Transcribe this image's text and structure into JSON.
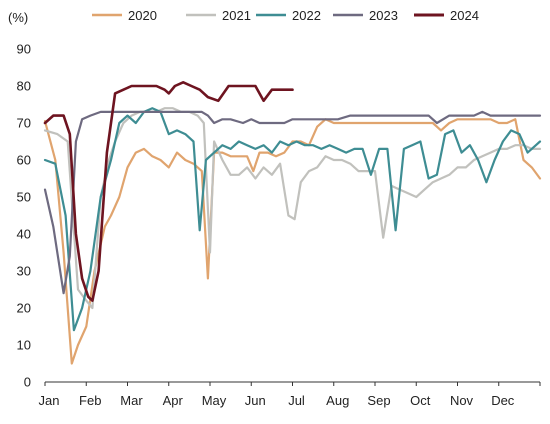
{
  "chart_data": {
    "type": "line",
    "title": "",
    "ylabel": "(%)",
    "xlabel": "",
    "ylim": [
      0,
      90
    ],
    "yticks": [
      0,
      10,
      20,
      30,
      40,
      50,
      60,
      70,
      80,
      90
    ],
    "xlim": [
      0,
      12
    ],
    "month_labels": [
      "Jan",
      "Feb",
      "Mar",
      "Apr",
      "May",
      "Jun",
      "Jul",
      "Aug",
      "Sep",
      "Oct",
      "Nov",
      "Dec"
    ],
    "grid": false,
    "legend_position": "top",
    "series": [
      {
        "name": "2020",
        "color": "#e0a46e",
        "x": [
          0.0,
          0.25,
          0.45,
          0.65,
          0.8,
          1.0,
          1.2,
          1.45,
          1.6,
          1.8,
          2.0,
          2.2,
          2.4,
          2.6,
          2.8,
          3.0,
          3.2,
          3.4,
          3.6,
          3.8,
          3.95,
          4.1,
          4.3,
          4.5,
          4.7,
          4.9,
          5.05,
          5.2,
          5.4,
          5.6,
          5.8,
          6.0,
          6.2,
          6.4,
          6.6,
          6.8,
          7.0,
          7.2,
          7.4,
          7.6,
          7.8,
          8.0,
          8.2,
          8.4,
          8.6,
          8.8,
          9.0,
          9.2,
          9.4,
          9.6,
          9.8,
          10.0,
          10.2,
          10.4,
          10.6,
          10.8,
          11.0,
          11.2,
          11.4,
          11.6,
          11.8,
          12.0
        ],
        "values": [
          70.5,
          60,
          35,
          5,
          10,
          15,
          30,
          42,
          45,
          50,
          58,
          62,
          63,
          61,
          60,
          58,
          62,
          60,
          59,
          57,
          28,
          62,
          62,
          61,
          61,
          61,
          57,
          62,
          62,
          61,
          62,
          65,
          65,
          64,
          69,
          71,
          70,
          70,
          70,
          70,
          70,
          70,
          70,
          70,
          70,
          70,
          70,
          70,
          70,
          68,
          70,
          71,
          71,
          71,
          71,
          71,
          70,
          70,
          71,
          60,
          58,
          55
        ]
      },
      {
        "name": "2021",
        "color": "#c1c1bd",
        "x": [
          0.0,
          0.3,
          0.55,
          0.8,
          1.0,
          1.15,
          1.35,
          1.55,
          1.7,
          1.9,
          2.1,
          2.3,
          2.5,
          2.7,
          2.9,
          3.1,
          3.3,
          3.5,
          3.7,
          3.85,
          4.0,
          4.1,
          4.3,
          4.5,
          4.7,
          4.9,
          5.1,
          5.3,
          5.5,
          5.7,
          5.9,
          6.05,
          6.2,
          6.4,
          6.6,
          6.8,
          7.0,
          7.2,
          7.4,
          7.6,
          7.8,
          8.0,
          8.2,
          8.4,
          8.6,
          8.8,
          9.0,
          9.2,
          9.4,
          9.6,
          9.8,
          10.0,
          10.2,
          10.4,
          10.6,
          10.8,
          11.0,
          11.2,
          11.4,
          11.6,
          11.8,
          12.0
        ],
        "values": [
          68,
          67,
          65,
          25,
          22,
          20,
          50,
          60,
          65,
          70,
          72,
          73,
          73,
          73,
          74,
          74,
          73,
          73,
          72,
          70,
          35,
          65,
          60,
          56,
          56,
          58,
          55,
          58,
          56,
          59,
          45,
          44,
          54,
          57,
          58,
          61,
          60,
          60,
          59,
          57,
          57,
          57,
          39,
          53,
          52,
          51,
          50,
          52,
          54,
          55,
          56,
          58,
          58,
          60,
          61,
          62,
          63,
          63,
          64,
          64,
          63,
          63
        ]
      },
      {
        "name": "2022",
        "color": "#3e8d93",
        "x": [
          0.0,
          0.25,
          0.5,
          0.7,
          0.9,
          1.1,
          1.35,
          1.6,
          1.8,
          2.0,
          2.2,
          2.4,
          2.6,
          2.8,
          3.0,
          3.2,
          3.4,
          3.6,
          3.75,
          3.9,
          4.1,
          4.3,
          4.5,
          4.7,
          4.9,
          5.1,
          5.3,
          5.5,
          5.7,
          5.9,
          6.1,
          6.3,
          6.5,
          6.7,
          6.9,
          7.1,
          7.3,
          7.5,
          7.7,
          7.9,
          8.1,
          8.3,
          8.5,
          8.7,
          8.9,
          9.1,
          9.3,
          9.5,
          9.7,
          9.9,
          10.1,
          10.3,
          10.5,
          10.7,
          10.9,
          11.1,
          11.3,
          11.5,
          11.7,
          11.9,
          12.0
        ],
        "values": [
          60,
          59,
          45,
          14,
          20,
          30,
          50,
          60,
          70,
          72,
          70,
          73,
          74,
          73,
          67,
          68,
          67,
          65,
          41,
          60,
          62,
          64,
          63,
          65,
          64,
          63,
          64,
          62,
          65,
          64,
          65,
          64,
          64,
          63,
          64,
          63,
          62,
          63,
          63,
          56,
          63,
          63,
          41,
          63,
          64,
          65,
          55,
          56,
          67,
          68,
          62,
          64,
          60,
          54,
          60,
          65,
          68,
          67,
          62,
          64,
          65
        ]
      },
      {
        "name": "2023",
        "color": "#6e6a80",
        "x": [
          0.0,
          0.2,
          0.45,
          0.6,
          0.75,
          0.9,
          1.1,
          1.35,
          1.6,
          1.8,
          2.0,
          2.3,
          2.6,
          2.9,
          3.2,
          3.5,
          3.8,
          3.95,
          4.1,
          4.3,
          4.5,
          4.8,
          5.0,
          5.2,
          5.4,
          5.6,
          5.8,
          6.0,
          6.2,
          6.5,
          6.8,
          7.1,
          7.4,
          7.7,
          8.0,
          8.3,
          8.6,
          8.9,
          9.1,
          9.3,
          9.5,
          9.8,
          10.1,
          10.4,
          10.6,
          10.8,
          11.1,
          11.4,
          11.7,
          12.0
        ],
        "values": [
          52,
          42,
          24,
          34,
          65,
          71,
          72,
          73,
          73,
          73,
          73,
          73,
          73,
          73,
          73,
          73,
          73,
          72,
          70,
          71,
          71,
          70,
          71,
          70,
          70,
          70,
          70,
          71,
          71,
          71,
          71,
          71,
          72,
          72,
          72,
          72,
          72,
          72,
          72,
          72,
          70,
          72,
          72,
          72,
          73,
          72,
          72,
          72,
          72,
          72
        ]
      },
      {
        "name": "2024",
        "color": "#6e1420",
        "x": [
          0.0,
          0.2,
          0.45,
          0.6,
          0.75,
          0.9,
          1.05,
          1.15,
          1.3,
          1.5,
          1.7,
          1.9,
          2.1,
          2.4,
          2.7,
          2.9,
          3.0,
          3.15,
          3.35,
          3.55,
          3.75,
          3.95,
          4.2,
          4.45,
          4.7,
          4.95,
          5.1,
          5.3,
          5.5,
          5.7,
          5.85,
          6.0
        ],
        "values": [
          70,
          72,
          72,
          67,
          40,
          28,
          23,
          22,
          30,
          62,
          78,
          79,
          80,
          80,
          80,
          79,
          78,
          80,
          81,
          80,
          79,
          77,
          76,
          80,
          80,
          80,
          80,
          76,
          79,
          79,
          79,
          79
        ]
      }
    ]
  }
}
